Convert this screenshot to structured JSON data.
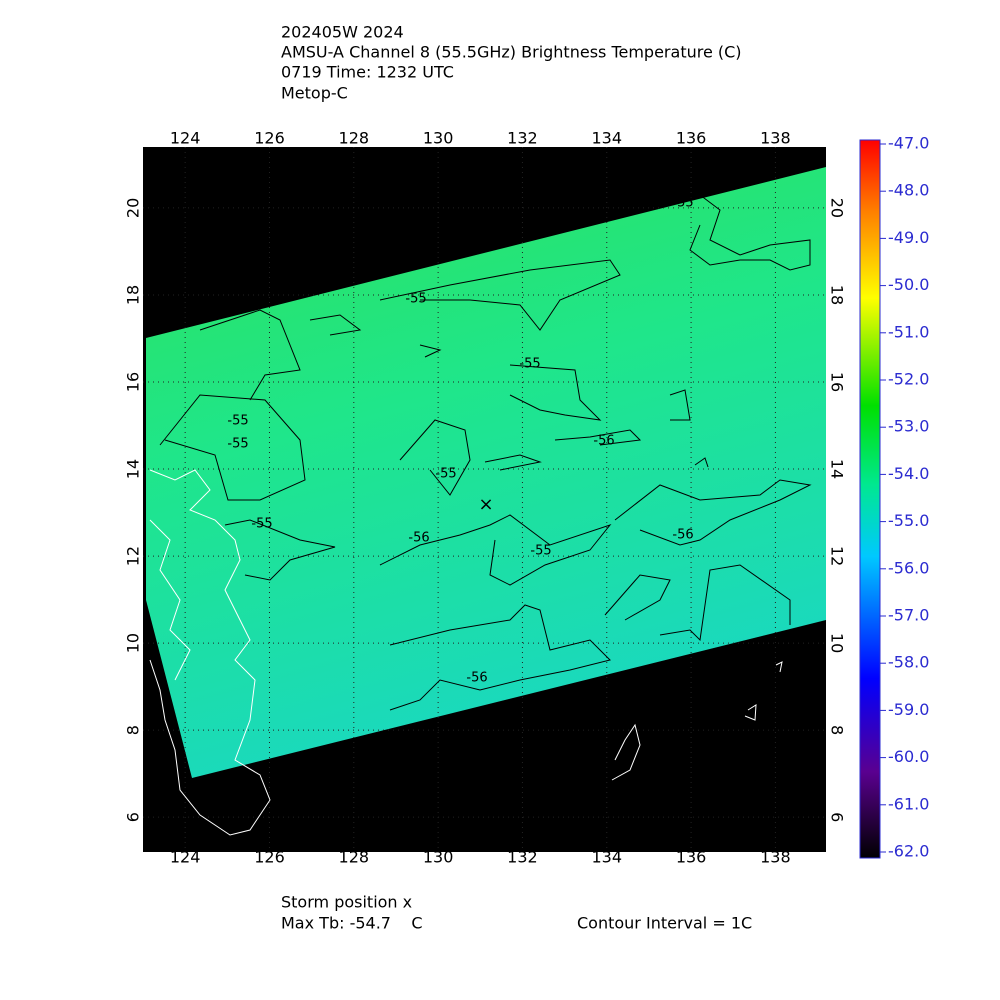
{
  "header": {
    "lines": [
      "202405W 2024",
      "AMSU-A Channel 8 (55.5GHz) Brightness Temperature (C)",
      "0719 Time: 1232 UTC",
      "Metop-C"
    ]
  },
  "map": {
    "lon_range": [
      123,
      139.2
    ],
    "lat_range": [
      5.2,
      21.4
    ],
    "lon_ticks": [
      124,
      126,
      128,
      130,
      132,
      134,
      136,
      138
    ],
    "lat_ticks": [
      6,
      8,
      10,
      12,
      14,
      16,
      18,
      20
    ],
    "contour_labels": [
      "-55",
      "-55",
      "-55",
      "-55",
      "-55",
      "-55",
      "-55",
      "-56",
      "-56",
      "-55",
      "-56",
      "-56"
    ]
  },
  "colorbar": {
    "range": [
      -62,
      -47
    ],
    "ticks": [
      {
        "value": -47,
        "label": "-47.0"
      },
      {
        "value": -48,
        "label": "-48.0"
      },
      {
        "value": -49,
        "label": "-49.0"
      },
      {
        "value": -50,
        "label": "-50.0"
      },
      {
        "value": -51,
        "label": "-51.0"
      },
      {
        "value": -52,
        "label": "-52.0"
      },
      {
        "value": -53,
        "label": "-53.0"
      },
      {
        "value": -54,
        "label": "-54.0"
      },
      {
        "value": -55,
        "label": "-55.0"
      },
      {
        "value": -56,
        "label": "-56.0"
      },
      {
        "value": -57,
        "label": "-57.0"
      },
      {
        "value": -58,
        "label": "-58.0"
      },
      {
        "value": -59,
        "label": "-59.0"
      },
      {
        "value": -60,
        "label": "-60.0"
      },
      {
        "value": -61,
        "label": "-61.0"
      },
      {
        "value": -62,
        "label": "-62.0"
      }
    ]
  },
  "footer": {
    "storm": "Storm position x",
    "max_tb": "Max Tb: -54.7    C",
    "interval": "Contour Interval = 1C"
  }
}
